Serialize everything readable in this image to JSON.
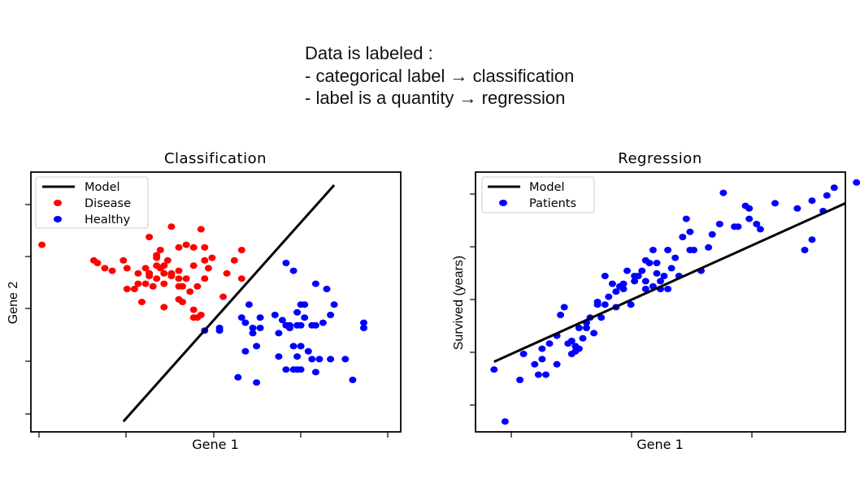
{
  "header": {
    "line1": "Data is labeled :",
    "line2": "- categorical label → classification",
    "line3": "- label is a quantity → regression"
  },
  "chart_data": [
    {
      "type": "scatter",
      "title": "Classification",
      "xlabel": "Gene 1",
      "ylabel": "Gene 2",
      "xlim": [
        0,
        100
      ],
      "ylim": [
        0,
        100
      ],
      "tick_labels_shown": false,
      "legend": "top-left",
      "legend_entries": [
        "Model",
        "Disease",
        "Healthy"
      ],
      "model_line": {
        "x": [
          25,
          82
        ],
        "y": [
          4,
          95
        ]
      },
      "series": [
        {
          "name": "Disease",
          "color": "#ff0000",
          "points": [
            [
              3,
              72
            ],
            [
              17,
              66
            ],
            [
              18,
              65
            ],
            [
              20,
              63
            ],
            [
              22,
              62
            ],
            [
              25,
              66
            ],
            [
              26,
              63
            ],
            [
              26,
              55
            ],
            [
              28,
              55
            ],
            [
              29,
              57
            ],
            [
              29,
              61
            ],
            [
              30,
              50
            ],
            [
              31,
              63
            ],
            [
              31,
              57
            ],
            [
              32,
              61
            ],
            [
              32,
              75
            ],
            [
              32,
              60
            ],
            [
              33,
              56
            ],
            [
              34,
              67
            ],
            [
              34,
              64
            ],
            [
              34,
              59
            ],
            [
              34,
              68
            ],
            [
              35,
              70
            ],
            [
              35,
              63
            ],
            [
              36,
              64
            ],
            [
              36,
              57
            ],
            [
              36,
              61
            ],
            [
              36,
              48
            ],
            [
              37,
              66
            ],
            [
              38,
              79
            ],
            [
              38,
              60
            ],
            [
              38,
              61
            ],
            [
              40,
              71
            ],
            [
              40,
              62
            ],
            [
              40,
              56
            ],
            [
              40,
              51
            ],
            [
              40,
              59
            ],
            [
              41,
              56
            ],
            [
              41,
              50
            ],
            [
              42,
              72
            ],
            [
              42,
              59
            ],
            [
              43,
              54
            ],
            [
              44,
              47
            ],
            [
              44,
              71
            ],
            [
              44,
              64
            ],
            [
              44,
              44
            ],
            [
              45,
              56
            ],
            [
              45,
              44
            ],
            [
              46,
              78
            ],
            [
              46,
              45
            ],
            [
              47,
              71
            ],
            [
              47,
              66
            ],
            [
              47,
              59
            ],
            [
              48,
              63
            ],
            [
              49,
              67
            ],
            [
              52,
              52
            ],
            [
              53,
              61
            ],
            [
              55,
              66
            ],
            [
              57,
              70
            ],
            [
              57,
              59
            ]
          ]
        },
        {
          "name": "Healthy",
          "color": "#0000ff",
          "points": [
            [
              47,
              39
            ],
            [
              51,
              40
            ],
            [
              51,
              39
            ],
            [
              56,
              21
            ],
            [
              57,
              44
            ],
            [
              58,
              42
            ],
            [
              58,
              31
            ],
            [
              59,
              49
            ],
            [
              60,
              40
            ],
            [
              60,
              38
            ],
            [
              61,
              19
            ],
            [
              61,
              33
            ],
            [
              62,
              40
            ],
            [
              62,
              44
            ],
            [
              66,
              45
            ],
            [
              67,
              38
            ],
            [
              67,
              29
            ],
            [
              68,
              43
            ],
            [
              69,
              65
            ],
            [
              69,
              41
            ],
            [
              69,
              24
            ],
            [
              70,
              41
            ],
            [
              70,
              40
            ],
            [
              71,
              33
            ],
            [
              71,
              24
            ],
            [
              71,
              62
            ],
            [
              72,
              41
            ],
            [
              72,
              29
            ],
            [
              72,
              46
            ],
            [
              72,
              24
            ],
            [
              73,
              49
            ],
            [
              73,
              41
            ],
            [
              73,
              33
            ],
            [
              73,
              24
            ],
            [
              74,
              49
            ],
            [
              74,
              44
            ],
            [
              75,
              31
            ],
            [
              76,
              41
            ],
            [
              76,
              28
            ],
            [
              77,
              41
            ],
            [
              77,
              57
            ],
            [
              77,
              23
            ],
            [
              78,
              28
            ],
            [
              79,
              42
            ],
            [
              80,
              55
            ],
            [
              81,
              45
            ],
            [
              81,
              28
            ],
            [
              82,
              49
            ],
            [
              85,
              28
            ],
            [
              87,
              20
            ],
            [
              90,
              42
            ],
            [
              90,
              40
            ]
          ]
        }
      ]
    },
    {
      "type": "scatter",
      "title": "Regression",
      "xlabel": "Gene 1",
      "ylabel": "Survived (years)",
      "xlim": [
        0,
        100
      ],
      "ylim": [
        0,
        100
      ],
      "tick_labels_shown": false,
      "legend": "top-left",
      "legend_entries": [
        "Model",
        "Patients"
      ],
      "model_line": {
        "x": [
          5,
          100
        ],
        "y": [
          27,
          88
        ]
      },
      "series": [
        {
          "name": "Patients",
          "color": "#0000ff",
          "points": [
            [
              5,
              24
            ],
            [
              8,
              4
            ],
            [
              12,
              20
            ],
            [
              13,
              30
            ],
            [
              16,
              26
            ],
            [
              17,
              22
            ],
            [
              18,
              28
            ],
            [
              18,
              32
            ],
            [
              19,
              22
            ],
            [
              20,
              34
            ],
            [
              22,
              26
            ],
            [
              22,
              37
            ],
            [
              23,
              45
            ],
            [
              24,
              48
            ],
            [
              25,
              34
            ],
            [
              26,
              35
            ],
            [
              26,
              30
            ],
            [
              27,
              33
            ],
            [
              27,
              31
            ],
            [
              28,
              32
            ],
            [
              28,
              40
            ],
            [
              29,
              36
            ],
            [
              30,
              40
            ],
            [
              30,
              42
            ],
            [
              31,
              44
            ],
            [
              32,
              38
            ],
            [
              33,
              49
            ],
            [
              33,
              50
            ],
            [
              34,
              44
            ],
            [
              35,
              49
            ],
            [
              35,
              60
            ],
            [
              36,
              52
            ],
            [
              37,
              57
            ],
            [
              38,
              54
            ],
            [
              38,
              48
            ],
            [
              39,
              56
            ],
            [
              40,
              57
            ],
            [
              40,
              55
            ],
            [
              41,
              62
            ],
            [
              42,
              49
            ],
            [
              43,
              58
            ],
            [
              43,
              60
            ],
            [
              44,
              60
            ],
            [
              45,
              62
            ],
            [
              46,
              58
            ],
            [
              46,
              55
            ],
            [
              46,
              66
            ],
            [
              47,
              65
            ],
            [
              48,
              70
            ],
            [
              48,
              56
            ],
            [
              49,
              65
            ],
            [
              49,
              61
            ],
            [
              50,
              55
            ],
            [
              50,
              58
            ],
            [
              51,
              60
            ],
            [
              52,
              70
            ],
            [
              52,
              55
            ],
            [
              53,
              63
            ],
            [
              54,
              67
            ],
            [
              55,
              60
            ],
            [
              56,
              75
            ],
            [
              57,
              82
            ],
            [
              58,
              70
            ],
            [
              58,
              77
            ],
            [
              59,
              70
            ],
            [
              61,
              62
            ],
            [
              63,
              71
            ],
            [
              64,
              76
            ],
            [
              66,
              80
            ],
            [
              67,
              92
            ],
            [
              70,
              79
            ],
            [
              71,
              79
            ],
            [
              73,
              87
            ],
            [
              74,
              82
            ],
            [
              74,
              86
            ],
            [
              76,
              80
            ],
            [
              77,
              78
            ],
            [
              81,
              88
            ],
            [
              87,
              86
            ],
            [
              89,
              70
            ],
            [
              91,
              74
            ],
            [
              91,
              89
            ],
            [
              94,
              85
            ],
            [
              95,
              91
            ],
            [
              97,
              94
            ],
            [
              103,
              96
            ]
          ]
        }
      ]
    }
  ]
}
